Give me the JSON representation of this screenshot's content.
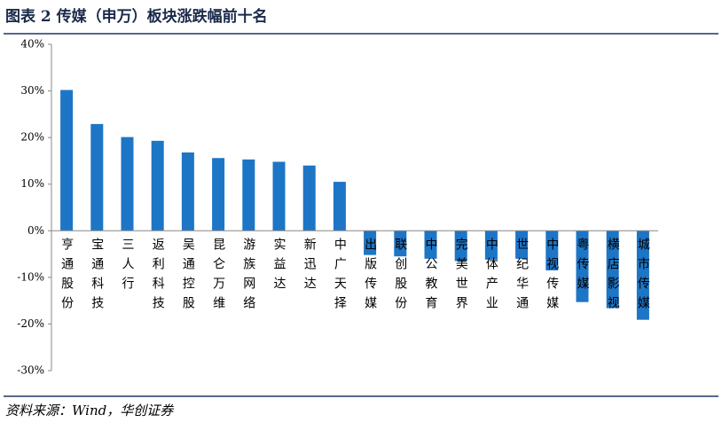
{
  "chart_data": {
    "type": "bar",
    "title": "图表 2  传媒（申万）板块涨跌幅前十名",
    "source": "资料来源：Wind，华创证券",
    "categories": [
      "亨通股份",
      "宝通科技",
      "三人行",
      "返利科技",
      "吴通控股",
      "昆仑万维",
      "游族网络",
      "实益达",
      "新迅达",
      "中广天择",
      "出版传媒",
      "联创股份",
      "中公教育",
      "完美世界",
      "中体产业",
      "世纪华通",
      "中视传媒",
      "粤传媒",
      "横店影视",
      "城市传媒"
    ],
    "values": [
      30.2,
      22.9,
      20.1,
      19.3,
      16.8,
      15.6,
      15.3,
      14.8,
      14.0,
      10.5,
      -5.2,
      -5.5,
      -6.0,
      -6.5,
      -6.2,
      -6.0,
      -8.5,
      -15.3,
      -16.6,
      -19.1
    ],
    "color": "#1d75c6",
    "ylim": [
      -30,
      40
    ],
    "yticks": [
      {
        "value": -30,
        "label": "-30%"
      },
      {
        "value": -20,
        "label": "-20%"
      },
      {
        "value": -10,
        "label": "-10%"
      },
      {
        "value": 0,
        "label": "0%"
      },
      {
        "value": 10,
        "label": "10%"
      },
      {
        "value": 20,
        "label": "20%"
      },
      {
        "value": 30,
        "label": "30%"
      },
      {
        "value": 40,
        "label": "40%"
      }
    ],
    "grid": false
  }
}
